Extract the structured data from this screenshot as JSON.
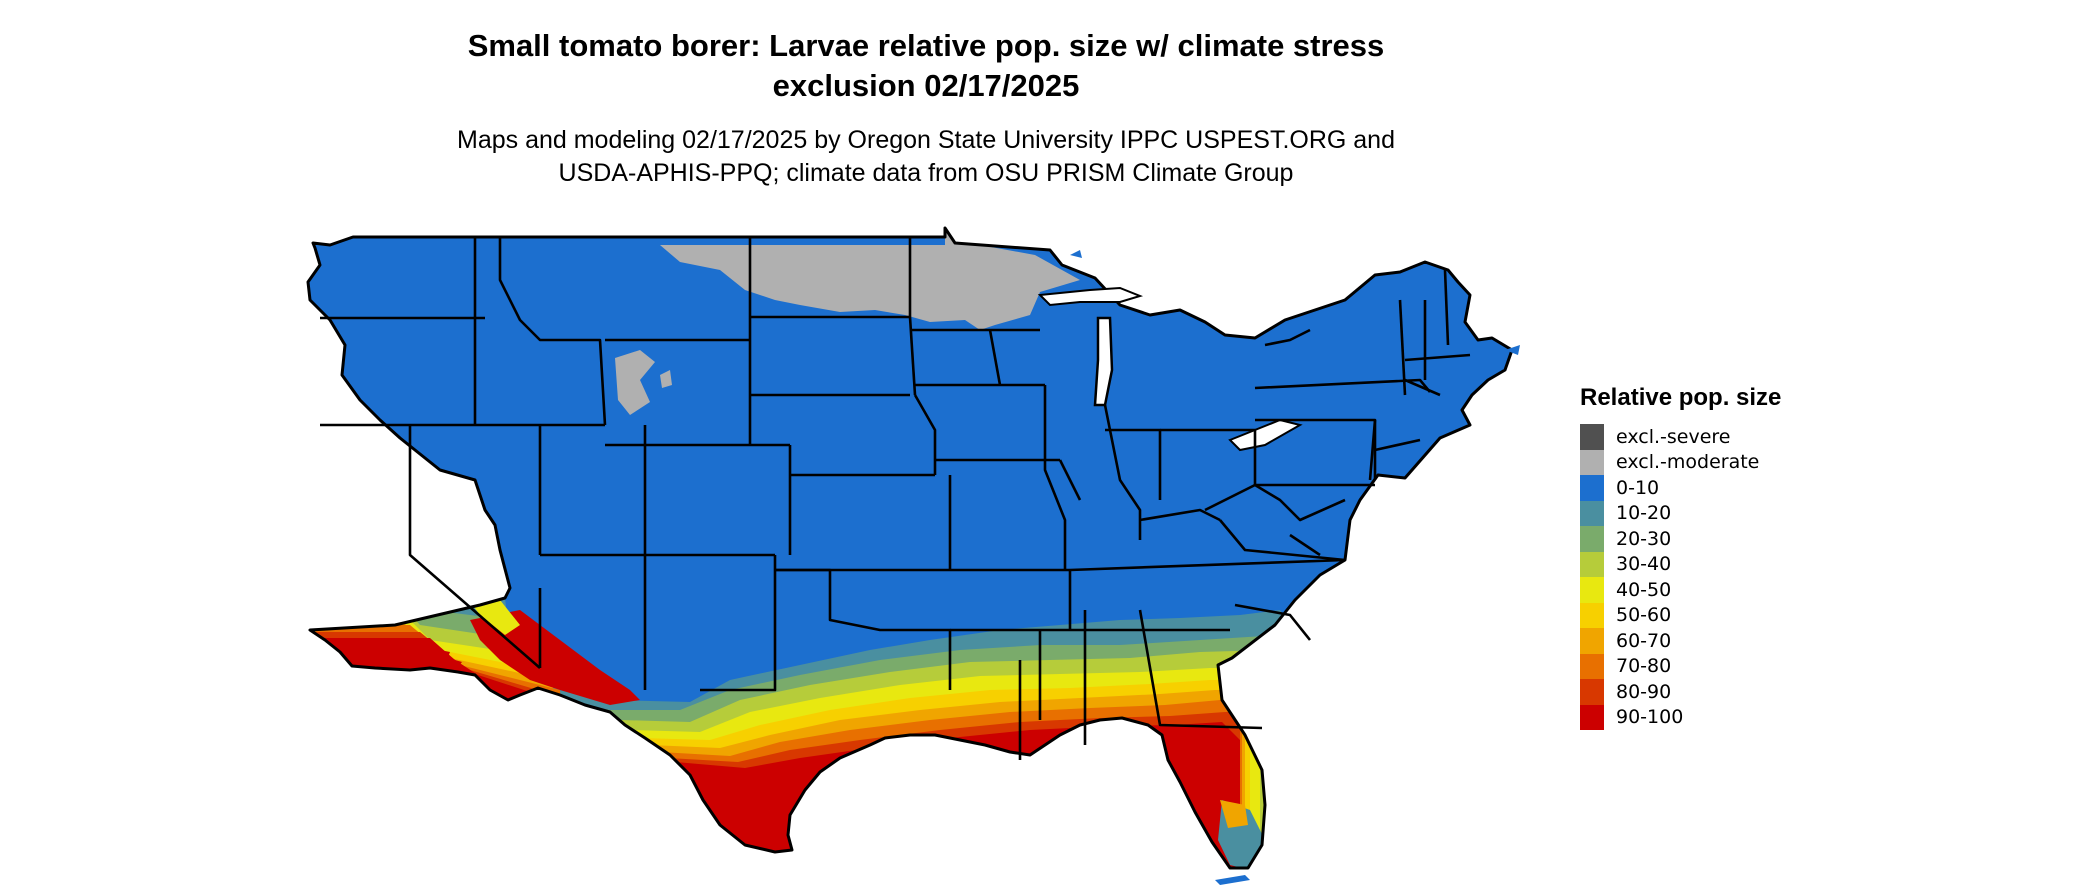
{
  "title": {
    "line1": "Small tomato borer: Larvae relative pop. size w/ climate stress",
    "line2": "exclusion 02/17/2025"
  },
  "subtitle": {
    "line1": "Maps and modeling 02/17/2025 by Oregon State University IPPC USPEST.ORG and",
    "line2": "USDA-APHIS-PPQ; climate data from OSU PRISM Climate Group"
  },
  "legend": {
    "title": "Relative pop. size",
    "items": [
      {
        "label": "excl.-severe",
        "color": "#505050"
      },
      {
        "label": "excl.-moderate",
        "color": "#b0b0b0"
      },
      {
        "label": "0-10",
        "color": "#1c6fcf"
      },
      {
        "label": "10-20",
        "color": "#4a8fa0"
      },
      {
        "label": "20-30",
        "color": "#7aab6b"
      },
      {
        "label": "30-40",
        "color": "#b6cc3a"
      },
      {
        "label": "40-50",
        "color": "#e8e810"
      },
      {
        "label": "50-60",
        "color": "#f7d000"
      },
      {
        "label": "60-70",
        "color": "#f0a500"
      },
      {
        "label": "70-80",
        "color": "#e87000"
      },
      {
        "label": "80-90",
        "color": "#d83800"
      },
      {
        "label": "90-100",
        "color": "#cc0000"
      }
    ]
  }
}
